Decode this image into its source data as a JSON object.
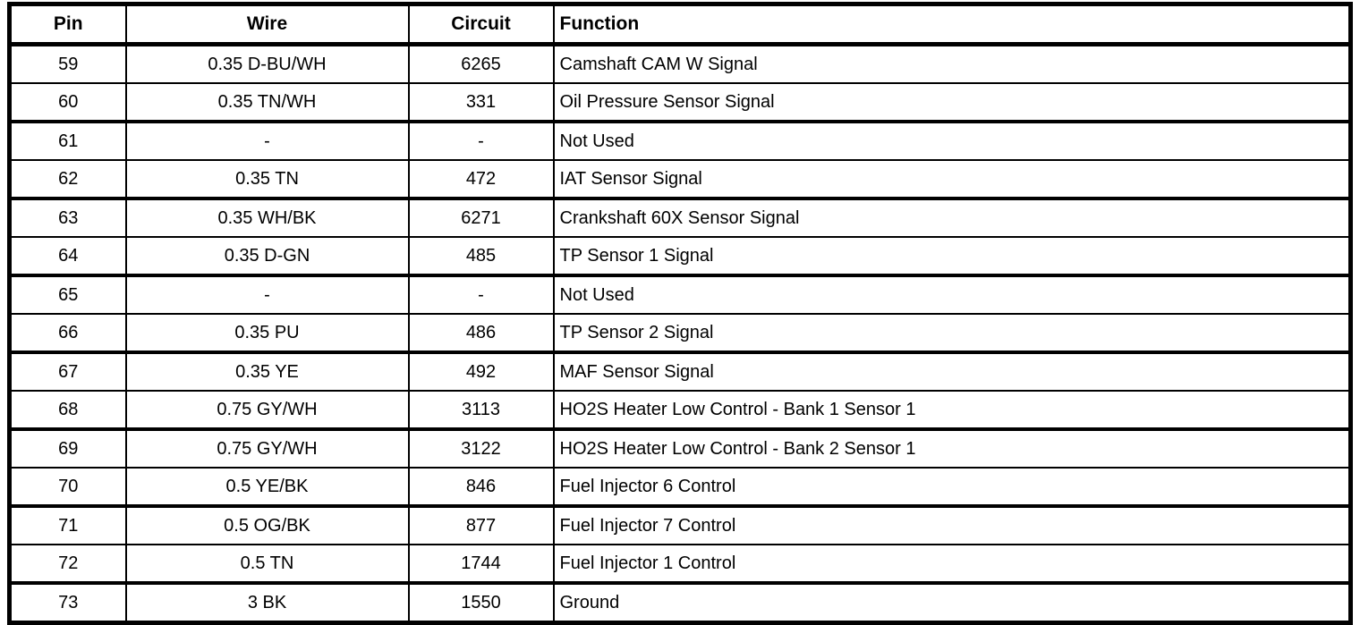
{
  "colors": {
    "border": "#000000",
    "background": "#ffffff",
    "text": "#000000"
  },
  "table": {
    "columns": [
      "Pin",
      "Wire",
      "Circuit",
      "Function"
    ],
    "rows": [
      {
        "pin": "59",
        "wire": "0.35 D-BU/WH",
        "circuit": "6265",
        "function": "Camshaft CAM W Signal"
      },
      {
        "pin": "60",
        "wire": "0.35 TN/WH",
        "circuit": "331",
        "function": "Oil Pressure Sensor Signal"
      },
      {
        "pin": "61",
        "wire": "-",
        "circuit": "-",
        "function": "Not Used"
      },
      {
        "pin": "62",
        "wire": "0.35 TN",
        "circuit": "472",
        "function": "IAT Sensor Signal"
      },
      {
        "pin": "63",
        "wire": "0.35 WH/BK",
        "circuit": "6271",
        "function": "Crankshaft 60X Sensor Signal"
      },
      {
        "pin": "64",
        "wire": "0.35 D-GN",
        "circuit": "485",
        "function": "TP Sensor 1 Signal"
      },
      {
        "pin": "65",
        "wire": "-",
        "circuit": "-",
        "function": "Not Used"
      },
      {
        "pin": "66",
        "wire": "0.35 PU",
        "circuit": "486",
        "function": "TP Sensor 2 Signal"
      },
      {
        "pin": "67",
        "wire": "0.35 YE",
        "circuit": "492",
        "function": "MAF Sensor Signal"
      },
      {
        "pin": "68",
        "wire": "0.75 GY/WH",
        "circuit": "3113",
        "function": "HO2S Heater Low Control - Bank 1 Sensor 1"
      },
      {
        "pin": "69",
        "wire": "0.75 GY/WH",
        "circuit": "3122",
        "function": "HO2S Heater Low Control - Bank 2 Sensor 1"
      },
      {
        "pin": "70",
        "wire": "0.5 YE/BK",
        "circuit": "846",
        "function": "Fuel Injector 6 Control"
      },
      {
        "pin": "71",
        "wire": "0.5 OG/BK",
        "circuit": "877",
        "function": "Fuel Injector 7 Control"
      },
      {
        "pin": "72",
        "wire": "0.5 TN",
        "circuit": "1744",
        "function": "Fuel Injector 1 Control"
      },
      {
        "pin": "73",
        "wire": "3 BK",
        "circuit": "1550",
        "function": "Ground"
      }
    ]
  }
}
